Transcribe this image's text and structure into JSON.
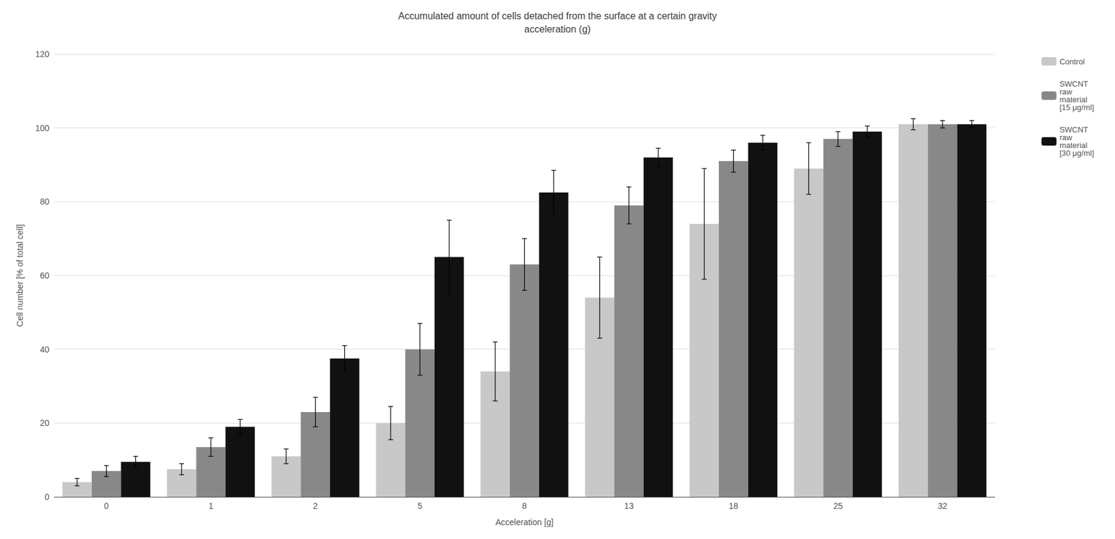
{
  "chart_data": {
    "type": "bar",
    "title": "Accumulated amount of cells detached from the surface at a certain gravity\nacceleration (g)",
    "xlabel": "Acceleration [g]",
    "ylabel": "Cell number [% of total cell]",
    "categories": [
      0,
      1,
      2,
      5,
      8,
      13,
      18,
      25,
      32
    ],
    "series": [
      {
        "name": "Control",
        "color": "#c8c8c8",
        "values": [
          4.0,
          7.5,
          11.0,
          20.0,
          34.0,
          54.0,
          74.0,
          89.0,
          101.0
        ],
        "errors": [
          1.0,
          1.5,
          2.0,
          4.5,
          8.0,
          11.0,
          15.0,
          7.0,
          1.5
        ]
      },
      {
        "name": "SWCNT\nraw\nmaterial\n[15 μg/ml]",
        "color": "#888888",
        "values": [
          7.0,
          13.5,
          23.0,
          40.0,
          63.0,
          79.0,
          91.0,
          97.0,
          101.0
        ],
        "errors": [
          1.5,
          2.5,
          4.0,
          7.0,
          7.0,
          5.0,
          3.0,
          2.0,
          1.0
        ]
      },
      {
        "name": "SWCNT\nraw\nmaterial\n[30 μg/ml]",
        "color": "#111111",
        "values": [
          9.5,
          19.0,
          37.5,
          65.0,
          82.5,
          92.0,
          96.0,
          99.0,
          101.0
        ],
        "errors": [
          1.5,
          2.0,
          3.5,
          10.0,
          6.0,
          2.5,
          2.0,
          1.5,
          1.0
        ]
      }
    ],
    "ylim": [
      0,
      120
    ],
    "yticks": [
      0,
      20,
      40,
      60,
      80,
      100,
      120
    ],
    "grid": true,
    "legend": "right"
  }
}
